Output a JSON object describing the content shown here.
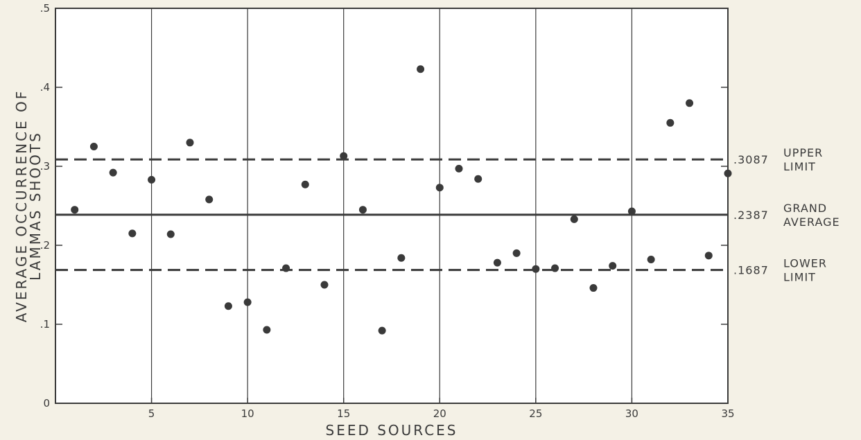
{
  "chart_data": {
    "type": "scatter",
    "title": "",
    "xlabel": "SEED SOURCES",
    "ylabel_lines": [
      "AVERAGE OCCURRENCE OF",
      "LAMMAS SHOOTS"
    ],
    "xlim": [
      0,
      35
    ],
    "ylim": [
      0,
      0.5
    ],
    "x_ticks": [
      5,
      10,
      15,
      20,
      25,
      30,
      35
    ],
    "x_tick_labels": [
      "5",
      "10",
      "15",
      "20",
      "25",
      "30",
      "35"
    ],
    "y_ticks": [
      0,
      0.1,
      0.2,
      0.3,
      0.4,
      0.5
    ],
    "y_tick_labels": [
      "0",
      ".1",
      ".2",
      ".3",
      ".4",
      ".5"
    ],
    "vertical_gridlines_at": [
      5,
      10,
      15,
      20,
      25,
      30
    ],
    "x": [
      1,
      2,
      3,
      4,
      5,
      6,
      7,
      8,
      9,
      10,
      11,
      12,
      13,
      14,
      15,
      16,
      17,
      18,
      19,
      20,
      21,
      22,
      23,
      24,
      25,
      26,
      27,
      28,
      29,
      30,
      31,
      32,
      33,
      34,
      35
    ],
    "y": [
      0.245,
      0.325,
      0.292,
      0.215,
      0.283,
      0.214,
      0.33,
      0.258,
      0.123,
      0.128,
      0.093,
      0.171,
      0.277,
      0.15,
      0.313,
      0.245,
      0.092,
      0.184,
      0.423,
      0.273,
      0.297,
      0.284,
      0.178,
      0.19,
      0.17,
      0.171,
      0.233,
      0.146,
      0.174,
      0.243,
      0.182,
      0.355,
      0.38,
      0.187,
      0.291
    ],
    "reference_lines": [
      {
        "value": 0.3087,
        "style": "dashed",
        "value_label": ".3087",
        "label_lines": [
          "UPPER",
          "LIMIT"
        ]
      },
      {
        "value": 0.2387,
        "style": "solid",
        "value_label": ".2387",
        "label_lines": [
          "GRAND",
          "AVERAGE"
        ]
      },
      {
        "value": 0.1687,
        "style": "dashed",
        "value_label": ".1687",
        "label_lines": [
          "LOWER",
          "LIMIT"
        ]
      }
    ],
    "grid": "vertical",
    "colors": {
      "ink": "#3a3a3a",
      "background": "#f4f1e6",
      "frame": "#ffffff"
    }
  }
}
